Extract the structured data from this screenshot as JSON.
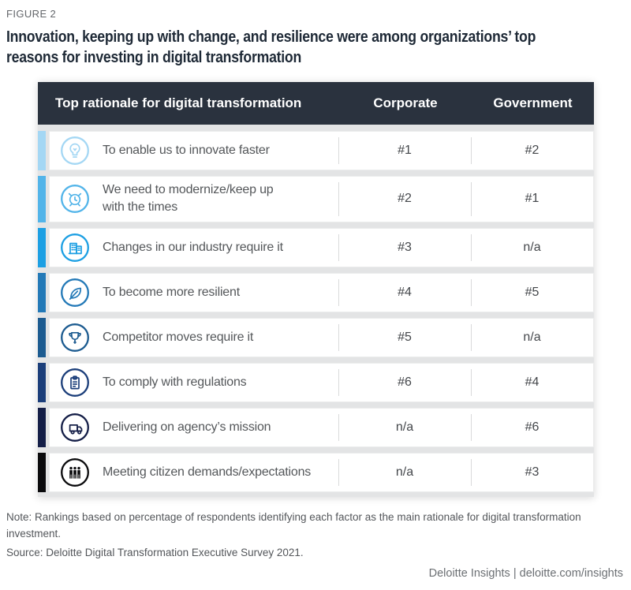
{
  "figure_label": "FIGURE 2",
  "title_lines": [
    "Innovation, keeping up with change, and resilience were among organizations’ top",
    "reasons for investing in digital transformation"
  ],
  "chart_data": {
    "type": "table",
    "title": "Innovation, keeping up with change, and resilience were among organizations’ top reasons for investing in digital transformation",
    "columns": [
      "Top rationale for digital transformation",
      "Corporate",
      "Government"
    ],
    "rows": [
      {
        "icon": "lightbulb-icon",
        "label": "To enable us to innovate faster",
        "corporate": "#1",
        "government": "#2",
        "color": "#A4D7F4"
      },
      {
        "icon": "alarm-clock-icon",
        "label": "We need to modernize/keep up\nwith the times",
        "corporate": "#2",
        "government": "#1",
        "color": "#52B4E9"
      },
      {
        "icon": "building-icon",
        "label": "Changes in our industry require it",
        "corporate": "#3",
        "government": "n/a",
        "color": "#1C9FE3"
      },
      {
        "icon": "leaf-icon",
        "label": "To become more resilient",
        "corporate": "#4",
        "government": "#5",
        "color": "#2379B7"
      },
      {
        "icon": "trophy-icon",
        "label": "Competitor moves require it",
        "corporate": "#5",
        "government": "n/a",
        "color": "#1C5B90"
      },
      {
        "icon": "clipboard-icon",
        "label": "To comply with regulations",
        "corporate": "#6",
        "government": "#4",
        "color": "#1B3E7A"
      },
      {
        "icon": "truck-icon",
        "label": "Delivering on agency’s mission",
        "corporate": "n/a",
        "government": "#6",
        "color": "#141E47"
      },
      {
        "icon": "people-icon",
        "label": "Meeting citizen demands/expectations",
        "corporate": "n/a",
        "government": "#3",
        "color": "#0A0A0C"
      }
    ]
  },
  "note": "Note: Rankings based on percentage of respondents identifying each factor as the main rationale for digital transformation investment.",
  "source": "Source: Deloitte Digital Transformation Executive Survey 2021.",
  "footer": "Deloitte Insights | deloitte.com/insights",
  "colors": {
    "header_bg": "#2A323E",
    "table_gap_bg": "#E3E4E5",
    "title_text": "#1E2936",
    "body_text": "#54575A",
    "footer_text": "#6B6F73"
  }
}
